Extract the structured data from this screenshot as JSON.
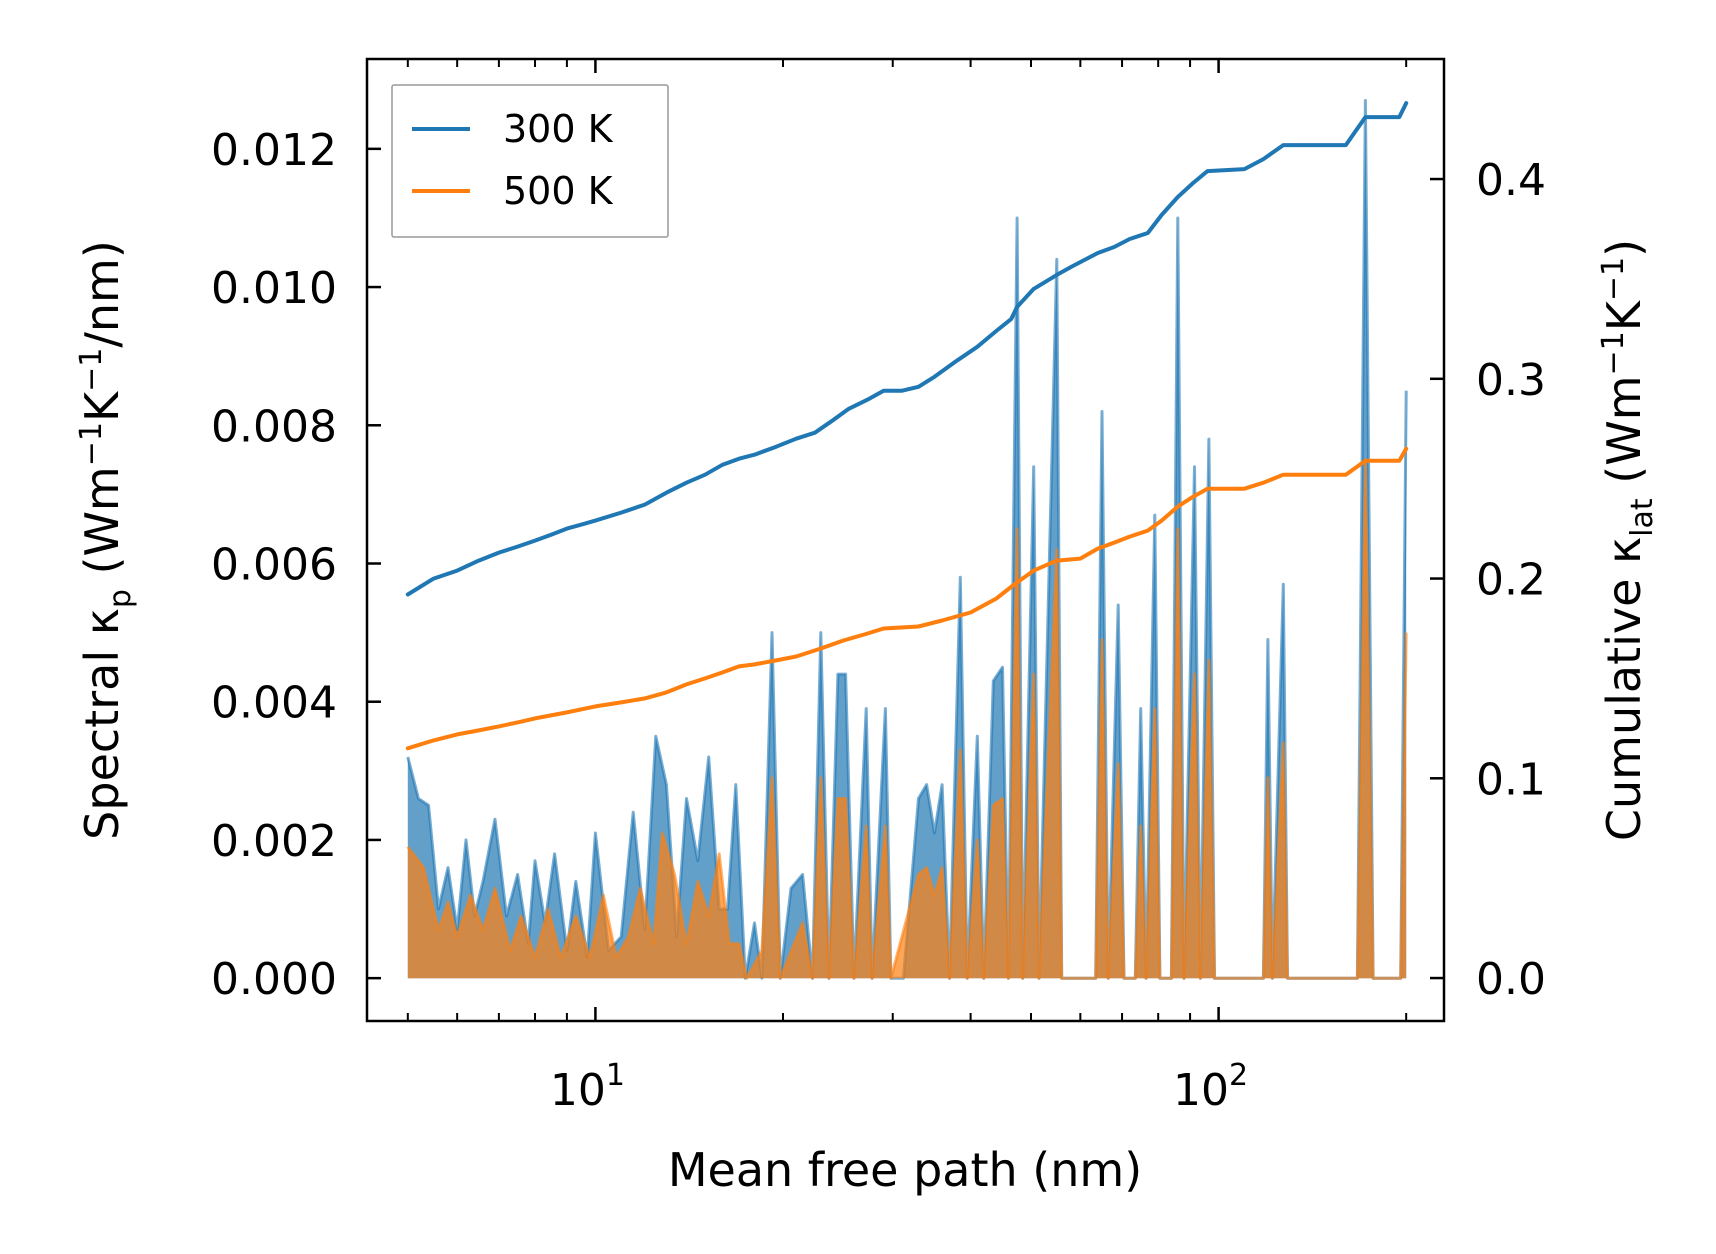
{
  "chart_data": {
    "type": "line",
    "xscale": "log",
    "xlim": [
      4.3,
      230
    ],
    "ylim_left": [
      -0.00062,
      0.0133
    ],
    "ylim_right": [
      -0.0215,
      0.4601
    ],
    "xlabel": "Mean free path (nm)",
    "ylabel_left": {
      "main": "Spectral κ",
      "sub": "p",
      "units_open": " (Wm",
      "sup1": "−1",
      "mid": "K",
      "sup2": "−1",
      "tail": "/nm)"
    },
    "ylabel_right": {
      "main": "Cumulative κ",
      "sub": "lat",
      "units_open": " (Wm",
      "sup1": "−1",
      "mid": "K",
      "sup2": "−1",
      "tail": ")"
    },
    "x_ticks": [
      {
        "value": 10,
        "base": "10",
        "exp": "1"
      },
      {
        "value": 100,
        "base": "10",
        "exp": "2"
      }
    ],
    "y_ticks_left": [
      {
        "value": 0.0,
        "label": "0.000"
      },
      {
        "value": 0.002,
        "label": "0.002"
      },
      {
        "value": 0.004,
        "label": "0.004"
      },
      {
        "value": 0.006,
        "label": "0.006"
      },
      {
        "value": 0.008,
        "label": "0.008"
      },
      {
        "value": 0.01,
        "label": "0.010"
      },
      {
        "value": 0.012,
        "label": "0.012"
      }
    ],
    "y_ticks_right": [
      {
        "value": 0.0,
        "label": "0.0"
      },
      {
        "value": 0.1,
        "label": "0.1"
      },
      {
        "value": 0.2,
        "label": "0.2"
      },
      {
        "value": 0.3,
        "label": "0.3"
      },
      {
        "value": 0.4,
        "label": "0.4"
      }
    ],
    "legend": {
      "position": "upper-left",
      "entries": [
        "300 K",
        "500 K"
      ]
    },
    "series": [
      {
        "name": "300 K",
        "color": "#1f77b4",
        "spectral": [
          [
            5,
            0.0032
          ],
          [
            5.2,
            0.0026
          ],
          [
            5.4,
            0.0025
          ],
          [
            5.6,
            0.001
          ],
          [
            5.8,
            0.0016
          ],
          [
            6,
            0.0007
          ],
          [
            6.2,
            0.002
          ],
          [
            6.4,
            0.0009
          ],
          [
            6.6,
            0.0014
          ],
          [
            6.9,
            0.0023
          ],
          [
            7.2,
            0.0009
          ],
          [
            7.5,
            0.0015
          ],
          [
            7.8,
            0.0005
          ],
          [
            8,
            0.0017
          ],
          [
            8.3,
            0.0008
          ],
          [
            8.6,
            0.0018
          ],
          [
            9,
            0.0004
          ],
          [
            9.3,
            0.0014
          ],
          [
            9.7,
            0.0003
          ],
          [
            10,
            0.0021
          ],
          [
            10.5,
            0.0004
          ],
          [
            11,
            0.0006
          ],
          [
            11.5,
            0.0024
          ],
          [
            12,
            0.0007
          ],
          [
            12.5,
            0.0035
          ],
          [
            13,
            0.0028
          ],
          [
            13.5,
            0.0006
          ],
          [
            14,
            0.0026
          ],
          [
            14.6,
            0.0017
          ],
          [
            15.2,
            0.0032
          ],
          [
            15.8,
            0.001
          ],
          [
            16.3,
            0.001
          ],
          [
            16.8,
            0.0028
          ],
          [
            17.4,
            0
          ],
          [
            18,
            0.0008
          ],
          [
            18.5,
            0
          ],
          [
            19.2,
            0.005
          ],
          [
            19.8,
            0
          ],
          [
            20.6,
            0.0013
          ],
          [
            21.5,
            0.0015
          ],
          [
            22.3,
            0
          ],
          [
            23,
            0.005
          ],
          [
            23.7,
            0
          ],
          [
            24.5,
            0.0044
          ],
          [
            25.2,
            0.0044
          ],
          [
            26,
            0
          ],
          [
            27.2,
            0.0039
          ],
          [
            27.8,
            0
          ],
          [
            29.2,
            0.0039
          ],
          [
            29.8,
            0
          ],
          [
            31.2,
            0
          ],
          [
            33,
            0.0026
          ],
          [
            34,
            0.0028
          ],
          [
            35,
            0.0021
          ],
          [
            36,
            0.0028
          ],
          [
            37,
            0
          ],
          [
            38.5,
            0.0058
          ],
          [
            39.5,
            0
          ],
          [
            41,
            0.0035
          ],
          [
            42,
            0
          ],
          [
            43.5,
            0.0043
          ],
          [
            45,
            0.0045
          ],
          [
            46,
            0
          ],
          [
            47.5,
            0.011
          ],
          [
            48.5,
            0
          ],
          [
            50.5,
            0.0074
          ],
          [
            51.5,
            0
          ],
          [
            55,
            0.0104
          ],
          [
            56,
            0
          ],
          [
            63.5,
            0
          ],
          [
            65,
            0.0082
          ],
          [
            66.5,
            0
          ],
          [
            69,
            0.0054
          ],
          [
            70.5,
            0
          ],
          [
            73.5,
            0
          ],
          [
            75,
            0.0039
          ],
          [
            76.5,
            0
          ],
          [
            79,
            0.0067
          ],
          [
            80.5,
            0
          ],
          [
            84,
            0
          ],
          [
            86,
            0.011
          ],
          [
            88,
            0
          ],
          [
            91.5,
            0.0074
          ],
          [
            93.5,
            0
          ],
          [
            96.5,
            0.0078
          ],
          [
            98.5,
            0
          ],
          [
            118,
            0
          ],
          [
            120,
            0.0049
          ],
          [
            122,
            0
          ],
          [
            127,
            0.0057
          ],
          [
            129,
            0
          ],
          [
            167,
            0
          ],
          [
            172,
            0.0127
          ],
          [
            177,
            0
          ],
          [
            196,
            0
          ],
          [
            200,
            0.0085
          ]
        ],
        "cumulative": [
          [
            5,
            0.192
          ],
          [
            5.5,
            0.2
          ],
          [
            6,
            0.204
          ],
          [
            6.5,
            0.209
          ],
          [
            7,
            0.213
          ],
          [
            7.5,
            0.216
          ],
          [
            8,
            0.219
          ],
          [
            8.5,
            0.222
          ],
          [
            9,
            0.225
          ],
          [
            9.5,
            0.227
          ],
          [
            10,
            0.229
          ],
          [
            11,
            0.233
          ],
          [
            12,
            0.237
          ],
          [
            13,
            0.243
          ],
          [
            14,
            0.248
          ],
          [
            15,
            0.252
          ],
          [
            16,
            0.257
          ],
          [
            17,
            0.26
          ],
          [
            18,
            0.262
          ],
          [
            19.5,
            0.266
          ],
          [
            21,
            0.27
          ],
          [
            22.5,
            0.273
          ],
          [
            24,
            0.279
          ],
          [
            25.5,
            0.285
          ],
          [
            27.5,
            0.29
          ],
          [
            29,
            0.294
          ],
          [
            31,
            0.294
          ],
          [
            33,
            0.296
          ],
          [
            35,
            0.301
          ],
          [
            38,
            0.309
          ],
          [
            41,
            0.316
          ],
          [
            44,
            0.324
          ],
          [
            46.5,
            0.33
          ],
          [
            47.5,
            0.336
          ],
          [
            50.5,
            0.345
          ],
          [
            55,
            0.352
          ],
          [
            58,
            0.356
          ],
          [
            64,
            0.363
          ],
          [
            68,
            0.366
          ],
          [
            72,
            0.37
          ],
          [
            77,
            0.373
          ],
          [
            81,
            0.382
          ],
          [
            86,
            0.391
          ],
          [
            91,
            0.398
          ],
          [
            96,
            0.404
          ],
          [
            110,
            0.405
          ],
          [
            118,
            0.41
          ],
          [
            127,
            0.417
          ],
          [
            160,
            0.417
          ],
          [
            172,
            0.431
          ],
          [
            195,
            0.431
          ],
          [
            200,
            0.438
          ]
        ]
      },
      {
        "name": "500 K",
        "color": "#ff7f0e",
        "spectral": [
          [
            5,
            0.0019
          ],
          [
            5.3,
            0.0016
          ],
          [
            5.6,
            0.0007
          ],
          [
            5.8,
            0.0011
          ],
          [
            6,
            0.0006
          ],
          [
            6.3,
            0.0012
          ],
          [
            6.6,
            0.0007
          ],
          [
            6.9,
            0.0013
          ],
          [
            7.3,
            0.0004
          ],
          [
            7.6,
            0.0009
          ],
          [
            8,
            0.0003
          ],
          [
            8.4,
            0.001
          ],
          [
            8.8,
            0.0003
          ],
          [
            9.3,
            0.0009
          ],
          [
            9.8,
            0.0003
          ],
          [
            10.3,
            0.0012
          ],
          [
            10.8,
            0.0003
          ],
          [
            11.3,
            0.0006
          ],
          [
            11.8,
            0.0013
          ],
          [
            12.4,
            0.0005
          ],
          [
            12.8,
            0.0021
          ],
          [
            13.4,
            0.0015
          ],
          [
            14,
            0.0005
          ],
          [
            14.6,
            0.0014
          ],
          [
            15.2,
            0.0009
          ],
          [
            15.8,
            0.0018
          ],
          [
            16.4,
            0.0005
          ],
          [
            17,
            0.0005
          ],
          [
            17.5,
            0
          ],
          [
            18.5,
            0.0004
          ],
          [
            19.2,
            0.0029
          ],
          [
            19.8,
            0
          ],
          [
            21.5,
            0.0008
          ],
          [
            22.3,
            0
          ],
          [
            23,
            0.0029
          ],
          [
            23.7,
            0
          ],
          [
            24.5,
            0.0026
          ],
          [
            25.2,
            0.0026
          ],
          [
            26,
            0
          ],
          [
            27.2,
            0.0022
          ],
          [
            27.8,
            0
          ],
          [
            29.2,
            0.0022
          ],
          [
            29.8,
            0
          ],
          [
            33,
            0.0015
          ],
          [
            34,
            0.0016
          ],
          [
            35,
            0.0012
          ],
          [
            36,
            0.0016
          ],
          [
            37,
            0
          ],
          [
            38.5,
            0.0033
          ],
          [
            39.5,
            0
          ],
          [
            41,
            0.002
          ],
          [
            42,
            0
          ],
          [
            43.5,
            0.0025
          ],
          [
            45,
            0.0026
          ],
          [
            46,
            0
          ],
          [
            47.5,
            0.0065
          ],
          [
            48.5,
            0
          ],
          [
            50.5,
            0.0044
          ],
          [
            51.5,
            0
          ],
          [
            55,
            0.0062
          ],
          [
            56,
            0
          ],
          [
            63.5,
            0
          ],
          [
            65,
            0.0049
          ],
          [
            66.5,
            0
          ],
          [
            69,
            0.0031
          ],
          [
            70.5,
            0
          ],
          [
            73.5,
            0
          ],
          [
            75,
            0.0022
          ],
          [
            76.5,
            0
          ],
          [
            79,
            0.0039
          ],
          [
            80.5,
            0
          ],
          [
            84,
            0
          ],
          [
            86,
            0.0065
          ],
          [
            88,
            0
          ],
          [
            91.5,
            0.0044
          ],
          [
            93.5,
            0
          ],
          [
            96.5,
            0.0046
          ],
          [
            98.5,
            0
          ],
          [
            118,
            0
          ],
          [
            120,
            0.0029
          ],
          [
            122,
            0
          ],
          [
            127,
            0.0034
          ],
          [
            129,
            0
          ],
          [
            167,
            0
          ],
          [
            172,
            0.0075
          ],
          [
            177,
            0
          ],
          [
            196,
            0
          ],
          [
            200,
            0.005
          ]
        ],
        "cumulative": [
          [
            5,
            0.115
          ],
          [
            5.5,
            0.119
          ],
          [
            6,
            0.122
          ],
          [
            6.5,
            0.124
          ],
          [
            7,
            0.126
          ],
          [
            7.5,
            0.128
          ],
          [
            8,
            0.13
          ],
          [
            9,
            0.133
          ],
          [
            10,
            0.136
          ],
          [
            11,
            0.138
          ],
          [
            12,
            0.14
          ],
          [
            13,
            0.143
          ],
          [
            14,
            0.147
          ],
          [
            15,
            0.15
          ],
          [
            16,
            0.153
          ],
          [
            17,
            0.156
          ],
          [
            18,
            0.157
          ],
          [
            19.5,
            0.159
          ],
          [
            21,
            0.161
          ],
          [
            23,
            0.165
          ],
          [
            25,
            0.169
          ],
          [
            27,
            0.172
          ],
          [
            29,
            0.175
          ],
          [
            33,
            0.176
          ],
          [
            36,
            0.179
          ],
          [
            40,
            0.183
          ],
          [
            44,
            0.19
          ],
          [
            47,
            0.197
          ],
          [
            50.5,
            0.204
          ],
          [
            55,
            0.209
          ],
          [
            60,
            0.21
          ],
          [
            64,
            0.215
          ],
          [
            68,
            0.218
          ],
          [
            72,
            0.221
          ],
          [
            77,
            0.224
          ],
          [
            81,
            0.229
          ],
          [
            86,
            0.236
          ],
          [
            91,
            0.241
          ],
          [
            96,
            0.245
          ],
          [
            110,
            0.245
          ],
          [
            118,
            0.248
          ],
          [
            127,
            0.252
          ],
          [
            160,
            0.252
          ],
          [
            172,
            0.259
          ],
          [
            195,
            0.259
          ],
          [
            200,
            0.265
          ]
        ]
      }
    ]
  }
}
